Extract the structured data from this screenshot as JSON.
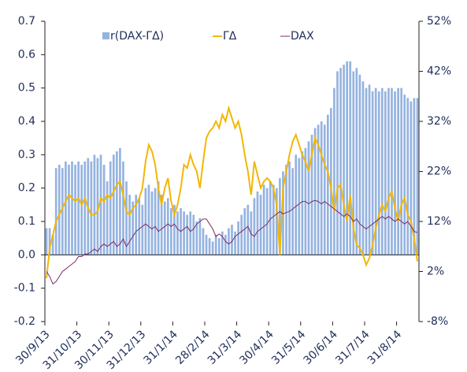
{
  "chart_data": {
    "type": "combo",
    "categories": [
      "30/9/13",
      null,
      null,
      null,
      null,
      null,
      null,
      null,
      null,
      null,
      "31/10/13",
      null,
      null,
      null,
      null,
      null,
      null,
      null,
      null,
      null,
      "30/11/13",
      null,
      null,
      null,
      null,
      null,
      null,
      null,
      null,
      null,
      "31/12/13",
      null,
      null,
      null,
      null,
      null,
      null,
      null,
      null,
      null,
      "31/1/14",
      null,
      null,
      null,
      null,
      null,
      null,
      null,
      null,
      null,
      "28/2/14",
      null,
      null,
      null,
      null,
      null,
      null,
      null,
      null,
      null,
      "31/3/14",
      null,
      null,
      null,
      null,
      null,
      null,
      null,
      null,
      null,
      "30/4/14",
      null,
      null,
      null,
      null,
      null,
      null,
      null,
      null,
      null,
      "31/5/14",
      null,
      null,
      null,
      null,
      null,
      null,
      null,
      null,
      null,
      "30/6/14",
      null,
      null,
      null,
      null,
      null,
      null,
      null,
      null,
      null,
      "31/7/14",
      null,
      null,
      null,
      null,
      null,
      null,
      null,
      null,
      null,
      "31/8/14",
      null,
      null,
      null,
      null,
      null,
      null
    ],
    "series": [
      {
        "name": "r(DAX-ΓΔ)",
        "type": "bar",
        "color": "#95b3e0",
        "values": [
          0.08,
          0.08,
          0.06,
          0.26,
          0.27,
          0.26,
          0.28,
          0.27,
          0.28,
          0.27,
          0.28,
          0.27,
          0.28,
          0.29,
          0.28,
          0.3,
          0.29,
          0.3,
          0.27,
          0.22,
          0.28,
          0.3,
          0.31,
          0.32,
          0.28,
          0.22,
          0.18,
          0.16,
          0.18,
          0.17,
          0.15,
          0.2,
          0.21,
          0.19,
          0.2,
          0.22,
          0.18,
          0.16,
          0.17,
          0.14,
          0.15,
          0.13,
          0.14,
          0.13,
          0.12,
          0.13,
          0.12,
          0.1,
          0.11,
          0.08,
          0.06,
          0.05,
          0.04,
          0.06,
          0.05,
          0.07,
          0.06,
          0.08,
          0.09,
          0.07,
          0.1,
          0.12,
          0.14,
          0.15,
          0.13,
          0.17,
          0.19,
          0.18,
          0.21,
          0.2,
          0.22,
          0.21,
          0.2,
          0.23,
          0.25,
          0.27,
          0.28,
          0.26,
          0.3,
          0.29,
          0.31,
          0.32,
          0.34,
          0.36,
          0.38,
          0.39,
          0.4,
          0.39,
          0.42,
          0.44,
          0.5,
          0.55,
          0.56,
          0.57,
          0.58,
          0.58,
          0.55,
          0.56,
          0.54,
          0.52,
          0.5,
          0.51,
          0.49,
          0.5,
          0.49,
          0.5,
          0.49,
          0.5,
          0.5,
          0.49,
          0.5,
          0.5,
          0.48,
          0.47,
          0.46,
          0.47,
          0.47
        ]
      },
      {
        "name": "ΓΔ",
        "type": "line",
        "color": "#f2b705",
        "values": [
          -0.07,
          0.02,
          0.06,
          0.1,
          0.12,
          0.14,
          0.16,
          0.18,
          0.17,
          0.16,
          0.17,
          0.15,
          0.17,
          0.14,
          0.12,
          0.12,
          0.13,
          0.17,
          0.16,
          0.18,
          0.17,
          0.19,
          0.21,
          0.22,
          0.18,
          0.13,
          0.12,
          0.14,
          0.15,
          0.17,
          0.2,
          0.28,
          0.33,
          0.31,
          0.27,
          0.2,
          0.15,
          0.2,
          0.23,
          0.16,
          0.12,
          0.15,
          0.2,
          0.27,
          0.26,
          0.3,
          0.27,
          0.25,
          0.2,
          0.28,
          0.35,
          0.37,
          0.38,
          0.4,
          0.38,
          0.42,
          0.4,
          0.44,
          0.41,
          0.38,
          0.4,
          0.36,
          0.3,
          0.25,
          0.18,
          0.28,
          0.24,
          0.2,
          0.22,
          0.23,
          0.22,
          0.2,
          0.15,
          0.0,
          0.2,
          0.25,
          0.3,
          0.34,
          0.36,
          0.33,
          0.3,
          0.28,
          0.25,
          0.3,
          0.35,
          0.33,
          0.3,
          0.27,
          0.25,
          0.2,
          0.13,
          0.2,
          0.21,
          0.15,
          0.1,
          0.18,
          0.08,
          0.03,
          0.02,
          0.0,
          -0.03,
          -0.01,
          0.03,
          0.08,
          0.12,
          0.15,
          0.13,
          0.17,
          0.19,
          0.14,
          0.1,
          0.15,
          0.17,
          0.12,
          0.1,
          0.05,
          -0.02
        ]
      },
      {
        "name": "DAX",
        "type": "line",
        "axis": "y2",
        "color": "#7b2c6b",
        "values": [
          2,
          1,
          -0.5,
          0,
          1,
          2,
          2.5,
          3,
          3.5,
          4,
          5,
          5,
          5.5,
          5.5,
          6,
          6.5,
          6,
          7,
          7.5,
          7,
          7.5,
          8,
          7,
          7.5,
          8.5,
          7,
          8,
          9,
          10,
          10.5,
          11,
          11.5,
          11,
          10.5,
          11,
          10,
          10.5,
          11,
          11.5,
          11,
          11.5,
          10.5,
          10,
          10.5,
          11,
          10,
          10.5,
          11.5,
          12,
          12.5,
          12.5,
          11.5,
          10.5,
          9,
          9.5,
          9,
          8,
          7.5,
          8,
          9,
          9.5,
          10,
          10.5,
          11,
          9.5,
          9,
          10,
          10.5,
          11,
          11.5,
          12.5,
          13,
          13.5,
          14,
          13.5,
          13.8,
          14,
          14.5,
          15,
          15.5,
          16,
          16,
          15.5,
          16,
          16.2,
          16,
          15.5,
          16,
          15.5,
          15,
          14.5,
          14,
          13.5,
          13,
          13.5,
          13,
          12,
          12.5,
          11.5,
          11,
          10.5,
          11,
          11.5,
          12,
          12.5,
          13,
          12.5,
          13,
          12.5,
          12,
          12.5,
          12,
          11.5,
          12,
          11,
          10,
          9.8
        ]
      }
    ],
    "ylim": [
      -0.2,
      0.7
    ],
    "yticks": [
      -0.2,
      -0.1,
      {
        "value": 0,
        "label": "0.0"
      },
      0.1,
      0.2,
      0.3,
      0.4,
      0.5,
      0.6,
      0.7
    ],
    "y2lim": [
      -8,
      52
    ],
    "y2ticks": [
      {
        "value": -8,
        "label": "-8%"
      },
      {
        "value": 2,
        "label": "2%"
      },
      {
        "value": 12,
        "label": "12%"
      },
      {
        "value": 22,
        "label": "22%"
      },
      {
        "value": 32,
        "label": "32%"
      },
      {
        "value": 42,
        "label": "42%"
      },
      {
        "value": 52,
        "label": "52%"
      }
    ],
    "legend": "top"
  }
}
